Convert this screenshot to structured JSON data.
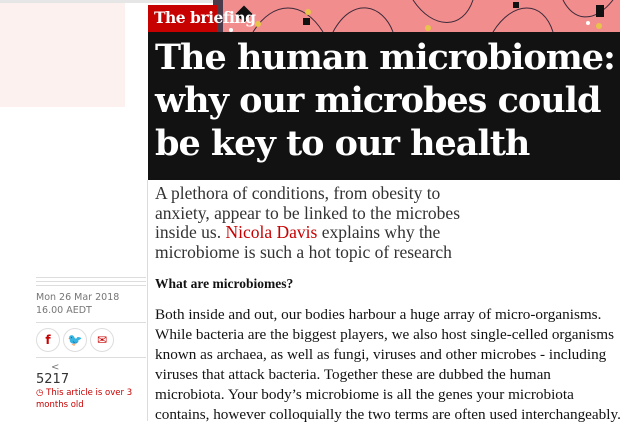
{
  "header": {
    "series_label": "The briefing",
    "headline": "The human microbiome: why our microbes could be key to our health"
  },
  "standfirst": {
    "before": "A plethora of conditions, from obesity to anxiety, appear to be linked to the microbes inside us. ",
    "author": "Nicola Davis",
    "after": " explains why the microbiome is such a hot topic of research"
  },
  "meta": {
    "date": "Mon 26 Mar 2018 16.00 AEDT",
    "share_count": "5217",
    "age_notice": "This article is over 3 months old"
  },
  "share_buttons": [
    {
      "icon": "facebook-icon",
      "glyph": "f"
    },
    {
      "icon": "twitter-icon",
      "glyph": "🐦"
    },
    {
      "icon": "email-icon",
      "glyph": "✉"
    }
  ],
  "article": {
    "subheading": "What are microbiomes?",
    "lines": [
      "Both inside and out, our bodies harbour a huge array of micro-organisms.",
      "While bacteria are the biggest players, we also host single-celled organisms",
      "known as archaea, as well as fungi, viruses and other microbes - including",
      "viruses that attack bacteria. Together these are dubbed the human",
      "microbiota. Your body’s microbiome is all the genes your microbiota",
      "contains, however colloquially the two terms are often used interchangeably."
    ]
  },
  "colors": {
    "accent": "#c70000",
    "headline_bg": "#121212"
  }
}
